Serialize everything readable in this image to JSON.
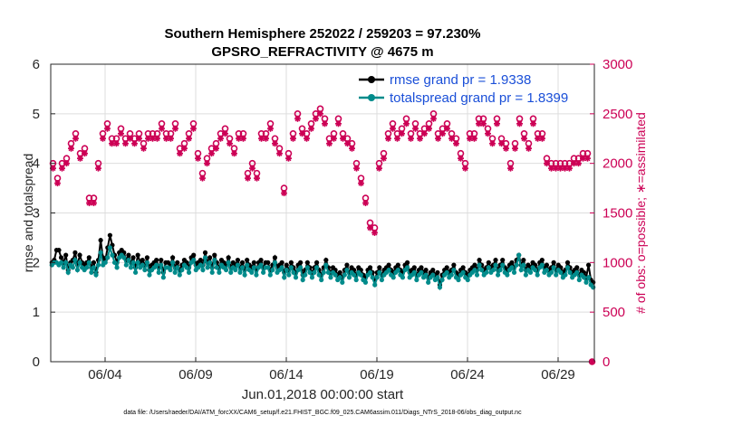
{
  "chart_data": {
    "type": "line",
    "title_line1": "Southern Hemisphere 252022 / 259203 = 97.230%",
    "title_line2": "GPSRO_REFRACTIVITY @ 4675 m",
    "xlabel": "Jun.01,2018 00:00:00 start",
    "ylabel_left": "rmse and totalspread",
    "ylabel_right": "# of obs: o=possible; ∗=assimilated",
    "footer": "data file: /Users/raeder/DAI/ATM_forcXX/CAM6_setup/f.e21.FHIST_BGC.f09_025.CAM6assim.011/Diags_NTrS_2018-06/obs_diag_output.nc",
    "x_range": [
      1.0,
      31.0
    ],
    "x_ticks": [
      4,
      9,
      14,
      19,
      24,
      29
    ],
    "x_tick_labels": [
      "06/04",
      "06/09",
      "06/14",
      "06/19",
      "06/24",
      "06/29"
    ],
    "ylim_left": [
      0,
      6
    ],
    "yticks_left": [
      "0",
      "1",
      "2",
      "3",
      "4",
      "5",
      "6"
    ],
    "ylim_right": [
      0,
      3000
    ],
    "yticks_right": [
      "0",
      "500",
      "1000",
      "1500",
      "2000",
      "2500",
      "3000"
    ],
    "grid": true,
    "legend_position": "top-right",
    "colors": {
      "rmse": "#000000",
      "spread": "#008b8b",
      "obs": "#cc0055",
      "grid": "#dddddd",
      "legend_text": "#1a4fd8"
    },
    "series": [
      {
        "name": "rmse grand pr = 1.9338",
        "axis": "left",
        "marker": "filled-circle",
        "values": [
          2.0,
          2.05,
          2.25,
          2.25,
          2.1,
          2.0,
          2.15,
          1.85,
          2.0,
          2.05,
          2.2,
          1.95,
          2.15,
          2.0,
          1.95,
          2.0,
          2.1,
          1.9,
          2.0,
          1.8,
          2.05,
          2.45,
          2.1,
          2.05,
          2.3,
          2.55,
          2.35,
          2.15,
          2.0,
          2.2,
          2.25,
          2.2,
          2.05,
          2.15,
          2.0,
          2.1,
          1.9,
          2.15,
          2.0,
          2.05,
          1.95,
          2.1,
          1.85,
          1.95,
          2.0,
          2.05,
          1.9,
          2.05,
          1.8,
          2.0,
          2.0,
          1.95,
          2.1,
          1.9,
          2.0,
          1.85,
          1.95,
          2.05,
          2.0,
          1.9,
          2.1,
          2.15,
          1.95,
          2.0,
          2.05,
          1.95,
          2.2,
          2.0,
          2.1,
          1.9,
          2.15,
          2.0,
          1.9,
          2.05,
          2.0,
          1.95,
          2.1,
          1.9,
          2.0,
          1.95,
          2.05,
          1.9,
          2.0,
          1.85,
          2.05,
          1.95,
          1.9,
          2.0,
          1.85,
          2.0,
          2.05,
          1.9,
          2.0,
          2.0,
          1.85,
          1.95,
          2.1,
          1.9,
          1.95,
          2.0,
          1.8,
          1.95,
          1.85,
          2.0,
          1.9,
          1.8,
          1.95,
          2.0,
          1.75,
          1.85,
          2.0,
          1.9,
          1.8,
          1.9,
          2.0,
          1.85,
          1.75,
          1.9,
          2.05,
          1.9,
          1.8,
          1.9,
          1.85,
          1.75,
          1.8,
          1.7,
          1.85,
          1.95,
          1.8,
          1.9,
          1.85,
          1.75,
          1.9,
          1.85,
          1.75,
          1.7,
          1.85,
          1.9,
          1.8,
          1.65,
          1.8,
          1.9,
          1.75,
          1.85,
          1.9,
          1.95,
          1.85,
          1.8,
          1.9,
          1.95,
          1.85,
          1.8,
          1.95,
          2.0,
          1.8,
          1.85,
          1.9,
          1.75,
          1.85,
          1.9,
          1.8,
          1.85,
          1.7,
          1.8,
          1.85,
          1.75,
          1.8,
          1.55,
          1.75,
          1.85,
          1.9,
          1.8,
          1.85,
          1.95,
          1.8,
          1.75,
          1.85,
          1.9,
          1.8,
          1.75,
          1.85,
          1.9,
          1.95,
          1.85,
          2.05,
          1.95,
          1.85,
          1.9,
          2.0,
          1.9,
          1.95,
          2.05,
          1.85,
          1.95,
          2.05,
          1.9,
          1.85,
          1.95,
          2.0,
          1.9,
          2.05,
          2.15,
          1.95,
          2.05,
          1.85,
          1.95,
          1.9,
          2.0,
          1.95,
          1.85,
          2.0,
          2.05,
          1.9,
          1.95,
          1.85,
          1.9,
          2.0,
          1.85,
          1.95,
          1.9,
          1.8,
          1.85,
          2.0,
          1.9,
          1.8,
          1.85,
          1.9,
          1.75,
          1.85,
          1.8,
          1.7,
          1.95,
          1.65,
          1.6
        ]
      },
      {
        "name": "totalspread grand pr = 1.8399",
        "axis": "left",
        "marker": "filled-circle",
        "values": [
          1.95,
          2.0,
          2.0,
          1.95,
          2.0,
          1.9,
          2.0,
          1.8,
          1.95,
          1.9,
          2.05,
          1.85,
          2.0,
          1.9,
          1.85,
          1.9,
          2.0,
          1.8,
          1.9,
          1.75,
          1.95,
          2.2,
          1.95,
          2.0,
          2.1,
          2.3,
          2.15,
          2.0,
          1.9,
          2.1,
          2.15,
          2.1,
          1.95,
          2.05,
          1.9,
          2.0,
          1.8,
          2.0,
          1.9,
          1.95,
          1.85,
          2.0,
          1.75,
          1.85,
          1.9,
          1.95,
          1.8,
          1.95,
          1.7,
          1.9,
          1.9,
          1.85,
          2.0,
          1.8,
          1.9,
          1.75,
          1.85,
          1.95,
          1.9,
          1.8,
          2.0,
          2.05,
          1.85,
          1.9,
          1.95,
          1.85,
          2.1,
          1.9,
          2.0,
          1.8,
          2.05,
          1.9,
          1.8,
          1.95,
          1.9,
          1.85,
          2.0,
          1.8,
          1.9,
          1.85,
          1.95,
          1.8,
          1.9,
          1.75,
          1.95,
          1.85,
          1.8,
          1.9,
          1.75,
          1.9,
          1.95,
          1.8,
          1.9,
          1.9,
          1.75,
          1.85,
          2.0,
          1.8,
          1.85,
          1.9,
          1.7,
          1.85,
          1.75,
          1.9,
          1.8,
          1.7,
          1.85,
          1.9,
          1.65,
          1.75,
          1.9,
          1.8,
          1.7,
          1.8,
          1.9,
          1.75,
          1.65,
          1.8,
          1.95,
          1.8,
          1.7,
          1.8,
          1.75,
          1.65,
          1.7,
          1.6,
          1.75,
          1.85,
          1.7,
          1.8,
          1.75,
          1.65,
          1.8,
          1.75,
          1.65,
          1.6,
          1.75,
          1.8,
          1.7,
          1.55,
          1.7,
          1.8,
          1.65,
          1.75,
          1.8,
          1.85,
          1.75,
          1.7,
          1.8,
          1.85,
          1.75,
          1.7,
          1.85,
          1.9,
          1.7,
          1.75,
          1.8,
          1.65,
          1.75,
          1.8,
          1.7,
          1.75,
          1.6,
          1.7,
          1.75,
          1.65,
          1.7,
          1.5,
          1.65,
          1.75,
          1.8,
          1.7,
          1.75,
          1.85,
          1.7,
          1.65,
          1.75,
          1.8,
          1.7,
          1.65,
          1.75,
          1.8,
          1.85,
          1.75,
          1.95,
          1.85,
          1.75,
          1.8,
          1.9,
          1.8,
          1.85,
          1.95,
          1.75,
          1.85,
          1.95,
          1.8,
          1.75,
          1.85,
          1.9,
          1.8,
          1.95,
          2.15,
          1.85,
          1.95,
          1.75,
          1.85,
          1.8,
          1.9,
          1.85,
          1.75,
          1.9,
          1.95,
          1.8,
          1.85,
          1.75,
          1.8,
          1.9,
          1.75,
          1.85,
          1.8,
          1.7,
          1.75,
          1.9,
          1.8,
          1.7,
          1.75,
          1.8,
          1.65,
          1.75,
          1.7,
          1.6,
          1.7,
          1.55,
          1.5
        ]
      },
      {
        "name": "# of obs possible",
        "axis": "right",
        "marker": "open-circle",
        "x": [
          1.125,
          1.375,
          1.625,
          1.875,
          2.125,
          2.375,
          2.625,
          2.875,
          3.125,
          3.375,
          3.625,
          3.875,
          4.125,
          4.375,
          4.625,
          4.875,
          5.125,
          5.375,
          5.625,
          5.875,
          6.125,
          6.375,
          6.625,
          6.875,
          7.125,
          7.375,
          7.625,
          7.875,
          8.125,
          8.375,
          8.625,
          8.875,
          9.125,
          9.375,
          9.625,
          9.875,
          10.125,
          10.375,
          10.625,
          10.875,
          11.125,
          11.375,
          11.625,
          11.875,
          12.125,
          12.375,
          12.625,
          12.875,
          13.125,
          13.375,
          13.625,
          13.875,
          14.125,
          14.375,
          14.625,
          14.875,
          15.125,
          15.375,
          15.625,
          15.875,
          16.125,
          16.375,
          16.625,
          16.875,
          17.125,
          17.375,
          17.625,
          17.875,
          18.125,
          18.375,
          18.625,
          18.875,
          19.125,
          19.375,
          19.625,
          19.875,
          20.125,
          20.375,
          20.625,
          20.875,
          21.125,
          21.375,
          21.625,
          21.875,
          22.125,
          22.375,
          22.625,
          22.875,
          23.125,
          23.375,
          23.625,
          23.875,
          24.125,
          24.375,
          24.625,
          24.875,
          25.125,
          25.375,
          25.625,
          25.875,
          26.125,
          26.375,
          26.625,
          26.875,
          27.125,
          27.375,
          27.625,
          27.875,
          28.125,
          28.375,
          28.625,
          28.875,
          29.125,
          29.375,
          29.625,
          29.875,
          30.125,
          30.375,
          30.625,
          30.875
        ],
        "values": [
          2000,
          1850,
          2000,
          2050,
          2200,
          2300,
          2100,
          2150,
          1650,
          1650,
          2000,
          2300,
          2400,
          2250,
          2250,
          2350,
          2250,
          2300,
          2250,
          2300,
          2200,
          2300,
          2300,
          2300,
          2400,
          2300,
          2300,
          2400,
          2150,
          2200,
          2300,
          2400,
          2100,
          1900,
          2050,
          2150,
          2200,
          2300,
          2350,
          2250,
          2150,
          2300,
          2300,
          1900,
          2000,
          1900,
          2300,
          2300,
          2400,
          2250,
          2150,
          1750,
          2100,
          2300,
          2500,
          2350,
          2300,
          2400,
          2500,
          2550,
          2450,
          2250,
          2300,
          2450,
          2300,
          2250,
          2200,
          2000,
          1850,
          1650,
          1400,
          1350,
          2000,
          2100,
          2300,
          2400,
          2300,
          2350,
          2450,
          2300,
          2400,
          2300,
          2350,
          2400,
          2500,
          2300,
          2350,
          2400,
          2300,
          2250,
          2100,
          2000,
          2300,
          2300,
          2450,
          2450,
          2350,
          2250,
          2450,
          2250,
          2200,
          2000,
          2200,
          2450,
          2300,
          2200,
          2450,
          2300,
          2300,
          2050,
          2000,
          2000,
          2000,
          2000,
          2000,
          2050,
          2050,
          2100,
          2100,
          0
        ]
      },
      {
        "name": "# of obs assimilated",
        "axis": "right",
        "marker": "asterisk",
        "x": [
          1.125,
          1.375,
          1.625,
          1.875,
          2.125,
          2.375,
          2.625,
          2.875,
          3.125,
          3.375,
          3.625,
          3.875,
          4.125,
          4.375,
          4.625,
          4.875,
          5.125,
          5.375,
          5.625,
          5.875,
          6.125,
          6.375,
          6.625,
          6.875,
          7.125,
          7.375,
          7.625,
          7.875,
          8.125,
          8.375,
          8.625,
          8.875,
          9.125,
          9.375,
          9.625,
          9.875,
          10.125,
          10.375,
          10.625,
          10.875,
          11.125,
          11.375,
          11.625,
          11.875,
          12.125,
          12.375,
          12.625,
          12.875,
          13.125,
          13.375,
          13.625,
          13.875,
          14.125,
          14.375,
          14.625,
          14.875,
          15.125,
          15.375,
          15.625,
          15.875,
          16.125,
          16.375,
          16.625,
          16.875,
          17.125,
          17.375,
          17.625,
          17.875,
          18.125,
          18.375,
          18.625,
          18.875,
          19.125,
          19.375,
          19.625,
          19.875,
          20.125,
          20.375,
          20.625,
          20.875,
          21.125,
          21.375,
          21.625,
          21.875,
          22.125,
          22.375,
          22.625,
          22.875,
          23.125,
          23.375,
          23.625,
          23.875,
          24.125,
          24.375,
          24.625,
          24.875,
          25.125,
          25.375,
          25.625,
          25.875,
          26.125,
          26.375,
          26.625,
          26.875,
          27.125,
          27.375,
          27.625,
          27.875,
          28.125,
          28.375,
          28.625,
          28.875,
          29.125,
          29.375,
          29.625,
          29.875,
          30.125,
          30.375,
          30.625,
          30.875
        ],
        "values": [
          1950,
          1800,
          1950,
          2000,
          2150,
          2250,
          2050,
          2100,
          1600,
          1600,
          1950,
          2250,
          2350,
          2200,
          2200,
          2300,
          2200,
          2250,
          2200,
          2250,
          2150,
          2250,
          2250,
          2250,
          2350,
          2250,
          2250,
          2350,
          2100,
          2150,
          2250,
          2350,
          2050,
          1850,
          2000,
          2100,
          2150,
          2250,
          2300,
          2200,
          2100,
          2250,
          2250,
          1850,
          1950,
          1850,
          2250,
          2250,
          2350,
          2200,
          2100,
          1700,
          2050,
          2250,
          2450,
          2300,
          2250,
          2350,
          2450,
          2500,
          2400,
          2200,
          2250,
          2400,
          2250,
          2200,
          2150,
          1950,
          1800,
          1600,
          1350,
          1300,
          1950,
          2050,
          2250,
          2350,
          2250,
          2300,
          2400,
          2250,
          2350,
          2250,
          2300,
          2350,
          2450,
          2250,
          2300,
          2350,
          2250,
          2200,
          2050,
          1950,
          2250,
          2250,
          2400,
          2400,
          2300,
          2200,
          2400,
          2200,
          2150,
          1950,
          2150,
          2400,
          2250,
          2150,
          2400,
          2250,
          2250,
          2000,
          1950,
          1950,
          1950,
          1950,
          1950,
          2000,
          2000,
          2050,
          2050,
          0
        ]
      }
    ]
  }
}
